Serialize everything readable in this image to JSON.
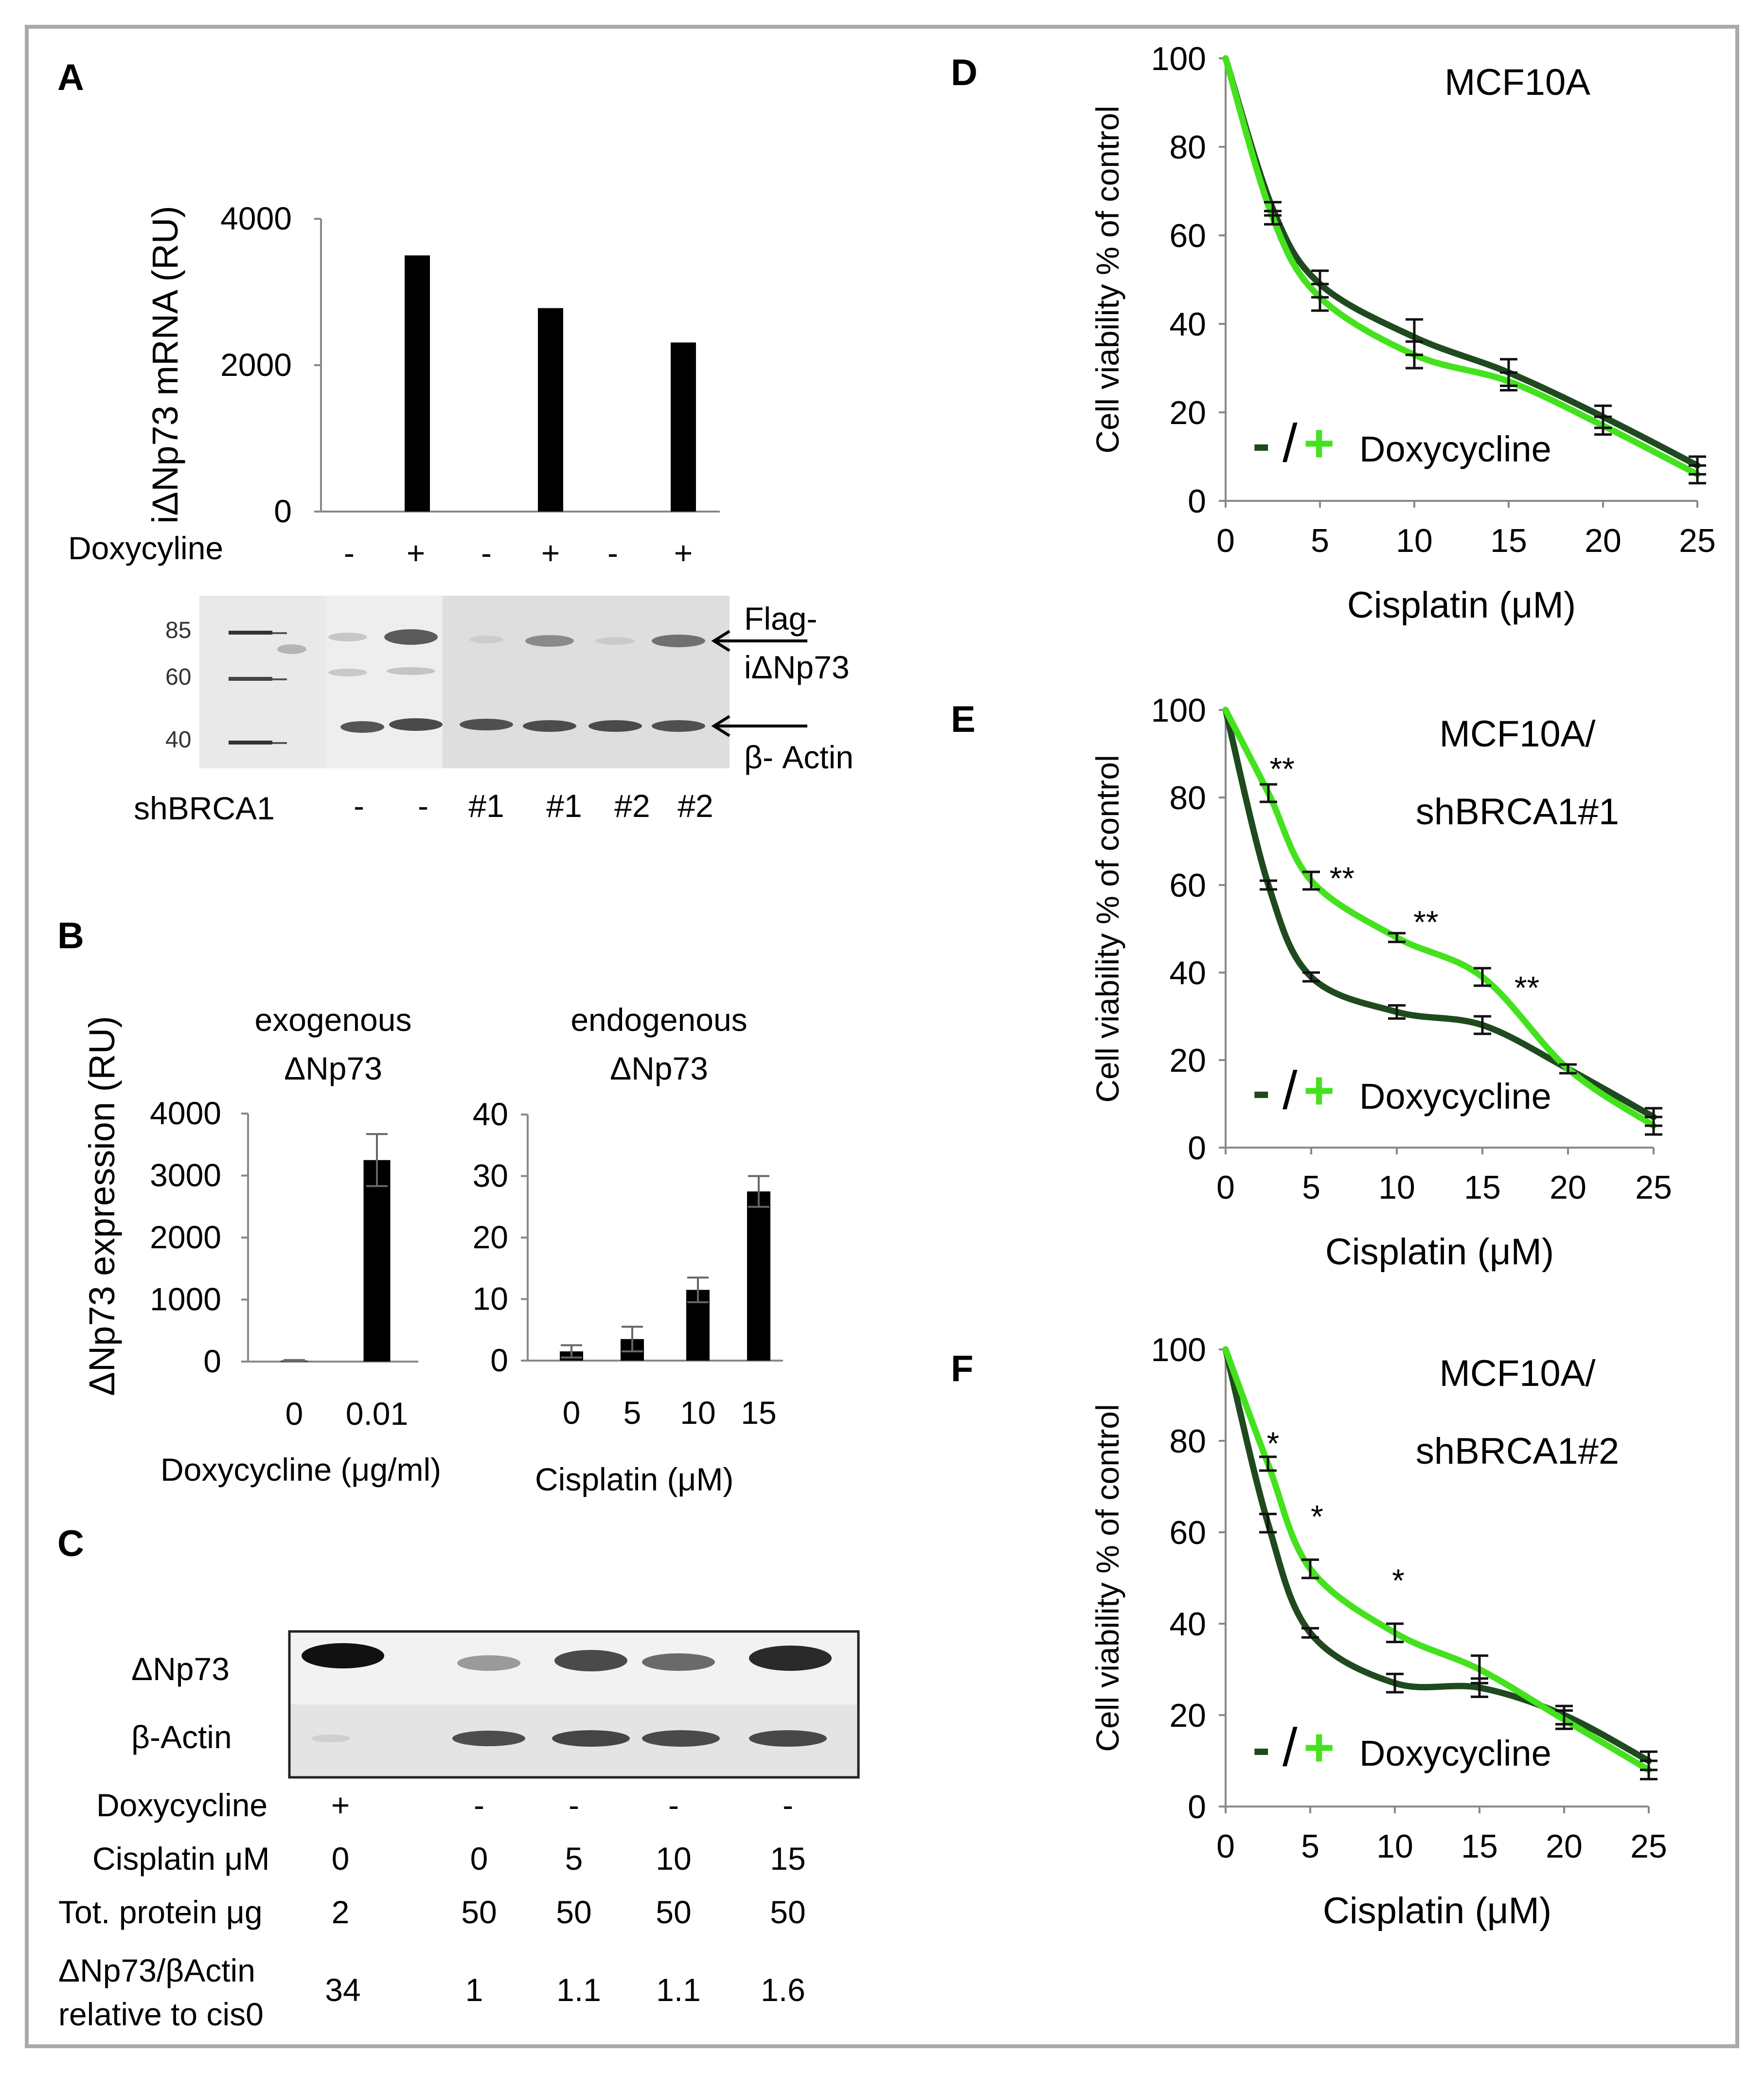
{
  "colors": {
    "dox_minus": "#1f4a1f",
    "dox_plus": "#44e21e",
    "bar": "#000000",
    "frame": "#aaaaaa"
  },
  "panel_labels": [
    "A",
    "B",
    "C",
    "D",
    "E",
    "F"
  ],
  "panel_A": {
    "ylabel": "iΔNp73  mRNA  (RU)",
    "row_label": "Doxycyline",
    "signs": [
      "-",
      "+",
      "-",
      "+",
      "-",
      "+"
    ],
    "blot_markers": [
      "85",
      "60",
      "40"
    ],
    "blot_annotations": [
      "Flag-",
      "iΔNp73",
      "β- Actin"
    ],
    "shbrca_label": "shBRCA1",
    "shbrca_values": [
      "-",
      "-",
      "#1",
      "#1",
      "#2",
      "#2"
    ]
  },
  "panel_B": {
    "ylabel": "ΔNp73 expression (RU)",
    "left": {
      "title_line1": "exogenous",
      "title_line2": "ΔNp73",
      "xlabel": "Doxycycline (μg/ml)"
    },
    "right": {
      "title_line1": "endogenous",
      "title_line2": "ΔNp73",
      "xlabel": "Cisplatin  (μM)"
    }
  },
  "panel_C": {
    "blot_labels": [
      "ΔNp73",
      "β-Actin"
    ],
    "rows": [
      {
        "label": "Doxycycline",
        "values": [
          "+",
          "-",
          "-",
          "-",
          "-"
        ]
      },
      {
        "label": "Cisplatin μM",
        "values": [
          "0",
          "0",
          "5",
          "10",
          "15"
        ]
      },
      {
        "label": "Tot. protein μg",
        "values": [
          "2",
          "50",
          "50",
          "50",
          "50"
        ]
      },
      {
        "label": "ΔNp73/βActin",
        "label2": "relative to cis0",
        "values": [
          "34",
          "1",
          "1.1",
          "1.1",
          "1.6"
        ]
      }
    ]
  },
  "legend": {
    "minus": "-",
    "slash": "/",
    "plus": "+",
    "text": "Doxycycline"
  },
  "chart_data": [
    {
      "id": "A",
      "type": "bar",
      "categories": [
        "-",
        "+",
        "-",
        "+",
        "-",
        "+"
      ],
      "values": [
        0,
        3500,
        0,
        2780,
        0,
        2310
      ],
      "ylim": [
        0,
        4000
      ],
      "yticks": [
        0,
        2000,
        4000
      ],
      "title": "",
      "xlabel": "Doxycyline",
      "ylabel": "iΔNp73  mRNA  (RU)"
    },
    {
      "id": "B-left",
      "type": "bar",
      "categories": [
        "0",
        "0.01"
      ],
      "values": [
        15,
        3250
      ],
      "errors": [
        10,
        420
      ],
      "ylim": [
        0,
        4000
      ],
      "yticks": [
        0,
        1000,
        2000,
        3000,
        4000
      ],
      "title": "exogenous ΔNp73",
      "xlabel": "Doxycycline (μg/ml)",
      "ylabel": "ΔNp73 expression (RU)"
    },
    {
      "id": "B-right",
      "type": "bar",
      "categories": [
        "0",
        "5",
        "10",
        "15"
      ],
      "values": [
        1.5,
        3.5,
        11.5,
        27.5
      ],
      "errors": [
        1,
        2,
        2,
        2.5
      ],
      "ylim": [
        0,
        40
      ],
      "yticks": [
        0,
        10,
        20,
        30,
        40
      ],
      "title": "endogenous ΔNp73",
      "xlabel": "Cisplatin  (μM)",
      "ylabel": ""
    },
    {
      "id": "D",
      "type": "line",
      "title": "MCF10A",
      "subtitle": "",
      "x": [
        0,
        2.5,
        5,
        10,
        15,
        20,
        25
      ],
      "xlim": [
        0,
        25
      ],
      "xticks": [
        0,
        5,
        10,
        15,
        20,
        25
      ],
      "ylim": [
        0,
        100
      ],
      "yticks": [
        0,
        20,
        40,
        60,
        80,
        100
      ],
      "xlabel": "Cisplatin (μM)",
      "ylabel": "Cell viability % of control",
      "series": [
        {
          "name": "- Doxycycline",
          "values": [
            100,
            66,
            49,
            37,
            29,
            19,
            8
          ],
          "errors": [
            0,
            1.5,
            3,
            4,
            3,
            2.5,
            2
          ]
        },
        {
          "name": "+ Doxycycline",
          "values": [
            100,
            64,
            46,
            33,
            27,
            17,
            6
          ],
          "errors": [
            0,
            1.5,
            3,
            3,
            2,
            2,
            2
          ]
        }
      ],
      "annotations": []
    },
    {
      "id": "E",
      "type": "line",
      "title": "MCF10A/",
      "subtitle": "shBRCA1#1",
      "x": [
        0,
        2.5,
        5,
        10,
        15,
        20,
        25
      ],
      "xlim": [
        0,
        25
      ],
      "xticks": [
        0,
        5,
        10,
        15,
        20,
        25
      ],
      "ylim": [
        0,
        100
      ],
      "yticks": [
        0,
        20,
        40,
        60,
        80,
        100
      ],
      "xlabel": "Cisplatin  (μM)",
      "ylabel": "Cell viability % of control",
      "series": [
        {
          "name": "- Doxycycline",
          "values": [
            100,
            60,
            39,
            31,
            28,
            18,
            7
          ],
          "errors": [
            0,
            1,
            1,
            1.5,
            2,
            1,
            2
          ]
        },
        {
          "name": "+ Doxycycline",
          "values": [
            100,
            81,
            61,
            48,
            39,
            18,
            5
          ],
          "errors": [
            0,
            2,
            2,
            1,
            2,
            1,
            2
          ]
        }
      ],
      "annotations": [
        {
          "text": "**",
          "x": 3.3,
          "y": 84
        },
        {
          "text": "**",
          "x": 6.8,
          "y": 59
        },
        {
          "text": "**",
          "x": 11.7,
          "y": 49
        },
        {
          "text": "**",
          "x": 17.6,
          "y": 34
        }
      ]
    },
    {
      "id": "F",
      "type": "line",
      "title": "MCF10A/",
      "subtitle": "shBRCA1#2",
      "x": [
        0,
        2.5,
        5,
        10,
        15,
        20,
        25
      ],
      "xlim": [
        0,
        25
      ],
      "xticks": [
        0,
        5,
        10,
        15,
        20,
        25
      ],
      "ylim": [
        0,
        100
      ],
      "yticks": [
        0,
        20,
        40,
        60,
        80,
        100
      ],
      "xlabel": "Cisplatin (μM)",
      "ylabel": "Cell viability % of control",
      "series": [
        {
          "name": "- Doxycycline",
          "values": [
            100,
            62,
            38,
            27,
            26,
            20,
            10
          ],
          "errors": [
            0,
            2,
            1,
            2,
            2,
            2,
            2
          ]
        },
        {
          "name": "+ Doxycycline",
          "values": [
            100,
            75,
            52,
            38,
            30,
            19,
            8
          ],
          "errors": [
            0,
            1.5,
            2,
            2,
            3,
            2,
            2
          ]
        }
      ],
      "annotations": [
        {
          "text": "*",
          "x": 2.8,
          "y": 77
        },
        {
          "text": "*",
          "x": 5.4,
          "y": 61
        },
        {
          "text": "*",
          "x": 10.2,
          "y": 47
        }
      ]
    }
  ]
}
